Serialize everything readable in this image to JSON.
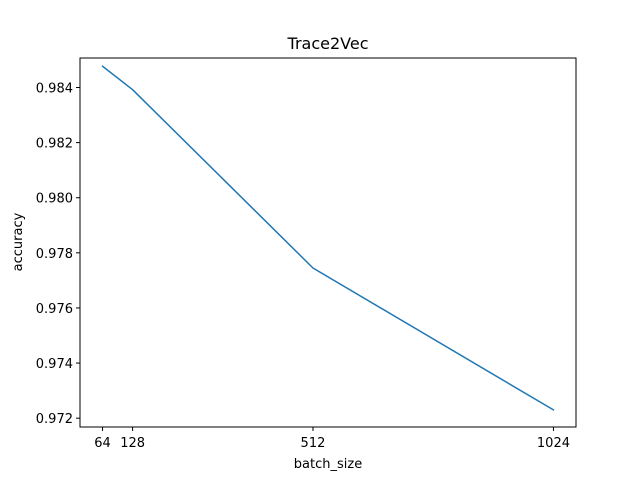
{
  "chart_data": {
    "type": "line",
    "title": "Trace2Vec",
    "xlabel": "batch_size",
    "ylabel": "accuracy",
    "x": [
      64,
      128,
      512,
      1024
    ],
    "series": [
      {
        "values": [
          0.98477,
          0.98392,
          0.97745,
          0.9723
        ],
        "color": "#1f77b4"
      }
    ],
    "xlim": [
      16,
      1072
    ],
    "ylim": [
      0.97168,
      0.98507
    ],
    "xticks": [
      64,
      128,
      512,
      1024
    ],
    "xtick_labels": [
      "64",
      "128",
      "512",
      "1024"
    ],
    "yticks": [
      0.972,
      0.974,
      0.976,
      0.978,
      0.98,
      0.982,
      0.984
    ],
    "ytick_labels": [
      "0.972",
      "0.974",
      "0.976",
      "0.978",
      "0.980",
      "0.982",
      "0.984"
    ],
    "grid": false,
    "legend": "none"
  }
}
